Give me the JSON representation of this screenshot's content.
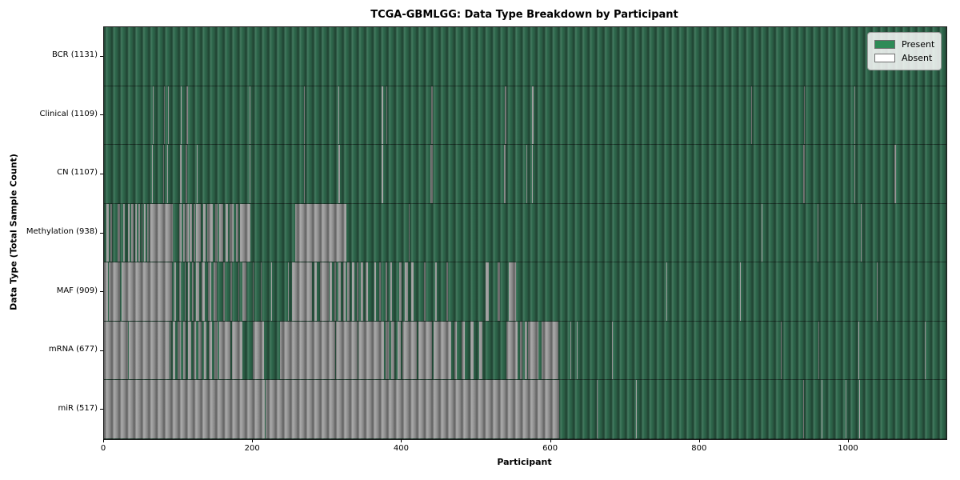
{
  "title": "TCGA-GBMLGG: Data Type Breakdown by Participant",
  "chart_data": {
    "type": "heatmap",
    "title": "TCGA-GBMLGG: Data Type Breakdown by Participant",
    "xlabel": "Participant",
    "ylabel": "Data Type (Total Sample Count)",
    "x_ticks": [
      0,
      200,
      400,
      600,
      800,
      1000
    ],
    "x_max": 1131,
    "total_participants": 1131,
    "grid": false,
    "legend_position": "upper right",
    "legend": [
      {
        "label": "Present",
        "color": "#2e8b57"
      },
      {
        "label": "Absent",
        "color": "#ffffff"
      }
    ],
    "present_color_bar": "#2f6b4e",
    "absent_color_bar": "#a1a1a1",
    "rows": [
      {
        "name": "BCR",
        "label": "BCR (1131)",
        "present": 1131,
        "absent": 0,
        "absent_ranges": []
      },
      {
        "name": "Clinical",
        "label": "Clinical (1109)",
        "present": 1109,
        "absent": 22,
        "absent_ranges": [
          [
            65,
            66
          ],
          [
            81,
            82
          ],
          [
            86,
            87
          ],
          [
            103,
            104
          ],
          [
            111,
            113
          ],
          [
            195,
            197
          ],
          [
            269,
            270
          ],
          [
            315,
            316
          ],
          [
            373,
            375
          ],
          [
            379,
            380
          ],
          [
            439,
            441
          ],
          [
            538,
            540
          ],
          [
            575,
            577
          ],
          [
            869,
            870
          ],
          [
            940,
            941
          ],
          [
            1008,
            1009
          ]
        ]
      },
      {
        "name": "CN",
        "label": "CN (1107)",
        "present": 1107,
        "absent": 24,
        "absent_ranges": [
          [
            64,
            66
          ],
          [
            80,
            81
          ],
          [
            85,
            86
          ],
          [
            102,
            104
          ],
          [
            110,
            112
          ],
          [
            125,
            126
          ],
          [
            195,
            197
          ],
          [
            268,
            270
          ],
          [
            315,
            317
          ],
          [
            373,
            375
          ],
          [
            438,
            441
          ],
          [
            537,
            539
          ],
          [
            567,
            568
          ],
          [
            575,
            576
          ],
          [
            939,
            941
          ],
          [
            1008,
            1009
          ],
          [
            1061,
            1063
          ]
        ]
      },
      {
        "name": "Methylation",
        "label": "Methylation (938)",
        "present": 938,
        "absent": 193,
        "absent_ranges": [
          [
            3,
            6
          ],
          [
            9,
            11
          ],
          [
            18,
            21
          ],
          [
            26,
            28
          ],
          [
            32,
            34
          ],
          [
            36,
            40
          ],
          [
            42,
            44
          ],
          [
            46,
            48
          ],
          [
            50,
            52
          ],
          [
            54,
            56
          ],
          [
            58,
            60
          ],
          [
            61,
            92
          ],
          [
            101,
            104
          ],
          [
            106,
            108
          ],
          [
            110,
            114
          ],
          [
            115,
            118
          ],
          [
            120,
            122
          ],
          [
            124,
            130
          ],
          [
            133,
            136
          ],
          [
            139,
            146
          ],
          [
            149,
            152
          ],
          [
            155,
            160
          ],
          [
            163,
            166
          ],
          [
            169,
            174
          ],
          [
            177,
            180
          ],
          [
            183,
            197
          ],
          [
            257,
            325
          ],
          [
            409,
            410
          ],
          [
            883,
            884
          ],
          [
            958,
            959
          ],
          [
            1016,
            1017
          ]
        ]
      },
      {
        "name": "MAF",
        "label": "MAF (909)",
        "present": 909,
        "absent": 222,
        "absent_ranges": [
          [
            0,
            5
          ],
          [
            6,
            21
          ],
          [
            24,
            91
          ],
          [
            95,
            97
          ],
          [
            101,
            103
          ],
          [
            108,
            110
          ],
          [
            113,
            115
          ],
          [
            118,
            120
          ],
          [
            124,
            128
          ],
          [
            131,
            135
          ],
          [
            140,
            144
          ],
          [
            147,
            151
          ],
          [
            160,
            162
          ],
          [
            170,
            172
          ],
          [
            180,
            182
          ],
          [
            186,
            191
          ],
          [
            200,
            201
          ],
          [
            210,
            211
          ],
          [
            225,
            226
          ],
          [
            247,
            248
          ],
          [
            252,
            279
          ],
          [
            283,
            286
          ],
          [
            290,
            302
          ],
          [
            303,
            306
          ],
          [
            309,
            312
          ],
          [
            315,
            318
          ],
          [
            321,
            324
          ],
          [
            327,
            330
          ],
          [
            333,
            336
          ],
          [
            339,
            342
          ],
          [
            345,
            348
          ],
          [
            351,
            354
          ],
          [
            363,
            365
          ],
          [
            370,
            372
          ],
          [
            378,
            380
          ],
          [
            385,
            387
          ],
          [
            396,
            400
          ],
          [
            404,
            408
          ],
          [
            412,
            416
          ],
          [
            430,
            432
          ],
          [
            445,
            447
          ],
          [
            460,
            462
          ],
          [
            512,
            517
          ],
          [
            528,
            532
          ],
          [
            544,
            553
          ],
          [
            755,
            756
          ],
          [
            854,
            855
          ],
          [
            1038,
            1039
          ]
        ]
      },
      {
        "name": "mRNA",
        "label": "mRNA (677)",
        "present": 677,
        "absent": 454,
        "absent_ranges": [
          [
            0,
            32
          ],
          [
            33,
            88
          ],
          [
            89,
            90
          ],
          [
            92,
            96
          ],
          [
            99,
            103
          ],
          [
            106,
            110
          ],
          [
            113,
            117
          ],
          [
            120,
            124
          ],
          [
            127,
            131
          ],
          [
            134,
            138
          ],
          [
            141,
            145
          ],
          [
            148,
            152
          ],
          [
            155,
            158
          ],
          [
            158,
            170
          ],
          [
            172,
            186
          ],
          [
            200,
            215
          ],
          [
            236,
            310
          ],
          [
            312,
            340
          ],
          [
            342,
            376
          ],
          [
            378,
            382
          ],
          [
            386,
            390
          ],
          [
            394,
            398
          ],
          [
            401,
            420
          ],
          [
            422,
            440
          ],
          [
            442,
            466
          ],
          [
            470,
            474
          ],
          [
            480,
            484
          ],
          [
            492,
            496
          ],
          [
            504,
            508
          ],
          [
            540,
            555
          ],
          [
            558,
            562
          ],
          [
            565,
            568
          ],
          [
            569,
            583
          ],
          [
            588,
            610
          ],
          [
            626,
            627
          ],
          [
            635,
            636
          ],
          [
            682,
            683
          ],
          [
            909,
            910
          ],
          [
            959,
            960
          ],
          [
            1013,
            1014
          ],
          [
            1102,
            1103
          ]
        ]
      },
      {
        "name": "miR",
        "label": "miR (517)",
        "present": 517,
        "absent": 614,
        "absent_ranges": [
          [
            0,
            195
          ],
          [
            196,
            216
          ],
          [
            217,
            611
          ],
          [
            662,
            663
          ],
          [
            714,
            715
          ],
          [
            939,
            940
          ],
          [
            963,
            964
          ],
          [
            996,
            997
          ],
          [
            1014,
            1015
          ]
        ]
      }
    ]
  }
}
